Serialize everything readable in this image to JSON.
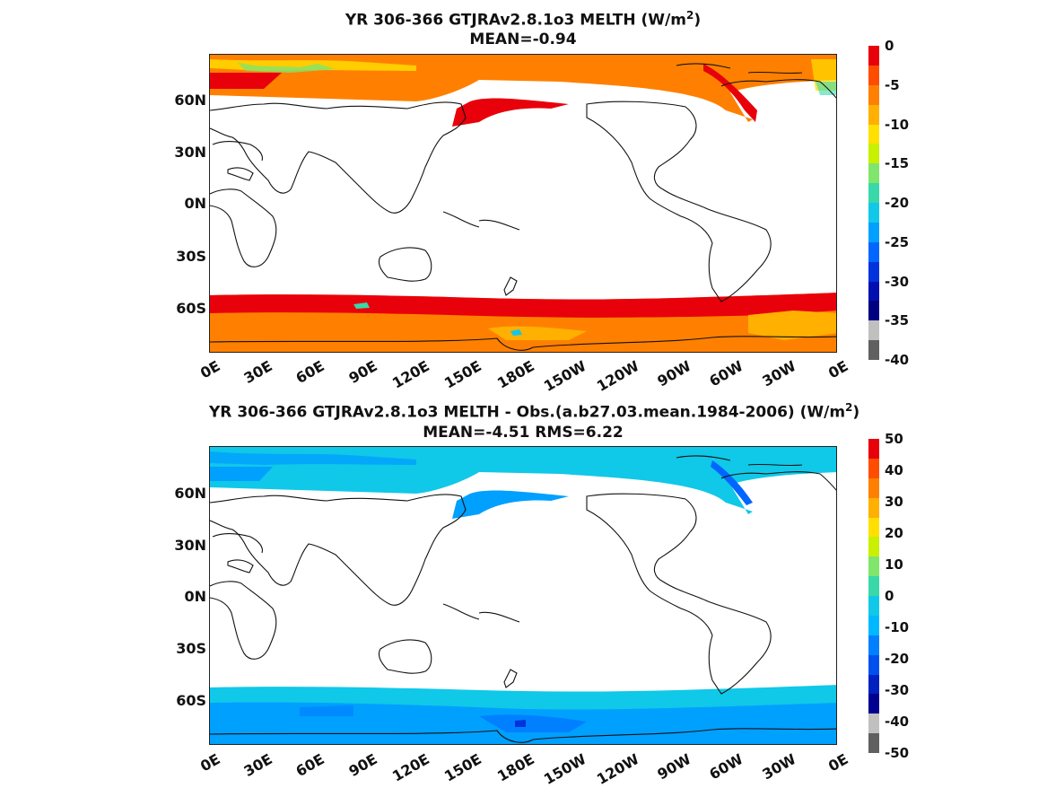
{
  "panels": [
    {
      "title_line1": "YR 306-366 GTJRAv2.8.1o3  MELTH (W/m",
      "title_sup": "2",
      "title_line1_end": ")",
      "title_line2": "MEAN=-0.94",
      "colorbar_labels": [
        "0",
        "-5",
        "-10",
        "-15",
        "-20",
        "-25",
        "-30",
        "-35",
        "-40"
      ],
      "colorbar_colors": [
        "#e8000b",
        "#ff4d00",
        "#ff8000",
        "#ffb000",
        "#ffe000",
        "#c8f000",
        "#7fe56b",
        "#39d8a8",
        "#10c8e8",
        "#00a0ff",
        "#0066ff",
        "#0033dd",
        "#0010b0",
        "#000080",
        "#c0c0c0",
        "#606060"
      ]
    },
    {
      "title_line1": "YR 306-366 GTJRAv2.8.1o3 MELTH - Obs.(a.b27.03.mean.1984-2006) (W/m",
      "title_sup": "2",
      "title_line1_end": ")",
      "title_line2": "MEAN=-4.51 RMS=6.22",
      "colorbar_labels": [
        "50",
        "40",
        "30",
        "20",
        "10",
        "0",
        "-10",
        "-20",
        "-30",
        "-40",
        "-50"
      ],
      "colorbar_colors": [
        "#e8000b",
        "#ff4d00",
        "#ff8000",
        "#ffb000",
        "#ffe000",
        "#c8f000",
        "#7fe56b",
        "#39d8a8",
        "#10c8e8",
        "#00b8ff",
        "#0080ff",
        "#0050f0",
        "#0020c0",
        "#000090",
        "#c0c0c0",
        "#606060"
      ]
    }
  ],
  "lat_labels": [
    "60N",
    "30N",
    "0N",
    "30S",
    "60S"
  ],
  "lon_labels": [
    "0E",
    "30E",
    "60E",
    "90E",
    "120E",
    "150E",
    "180E",
    "150W",
    "120W",
    "90W",
    "60W",
    "30W",
    "0E"
  ]
}
